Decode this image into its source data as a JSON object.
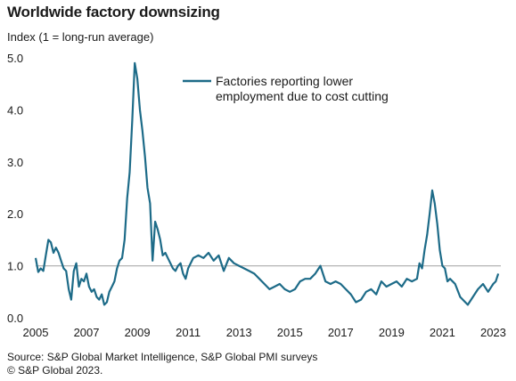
{
  "title": "Worldwide factory downsizing",
  "subtitle": "Index (1 = long-run average)",
  "footer": {
    "source": "Source: S&P Global Market Intelligence, S&P Global PMI surveys",
    "copyright": "© S&P Global 2023."
  },
  "colors": {
    "series": "#1d6b88",
    "reference_line": "#b3b3b3",
    "text": "#1a1a1a"
  },
  "chart_data": {
    "type": "line",
    "ylim": [
      0,
      5
    ],
    "xlim": [
      2005,
      2023.3
    ],
    "y_ticks": [
      "0.0",
      "1.0",
      "2.0",
      "3.0",
      "4.0",
      "5.0"
    ],
    "y_tick_values": [
      0,
      1,
      2,
      3,
      4,
      5
    ],
    "x_ticks": [
      "2005",
      "2007",
      "2009",
      "2011",
      "2013",
      "2015",
      "2017",
      "2019",
      "2021",
      "2023"
    ],
    "x_tick_values": [
      2005,
      2007,
      2009,
      2011,
      2013,
      2015,
      2017,
      2019,
      2021,
      2023
    ],
    "reference_line": 1.0,
    "legend_position": "top-right",
    "series": [
      {
        "name": "Factories reporting lower employment due to cost cutting",
        "x": [
          2005.0,
          2005.1,
          2005.2,
          2005.3,
          2005.4,
          2005.5,
          2005.6,
          2005.7,
          2005.8,
          2005.9,
          2006.0,
          2006.1,
          2006.2,
          2006.3,
          2006.4,
          2006.5,
          2006.6,
          2006.7,
          2006.8,
          2006.9,
          2007.0,
          2007.1,
          2007.2,
          2007.3,
          2007.4,
          2007.5,
          2007.6,
          2007.7,
          2007.8,
          2007.9,
          2008.0,
          2008.1,
          2008.2,
          2008.3,
          2008.4,
          2008.5,
          2008.6,
          2008.7,
          2008.8,
          2008.9,
          2009.0,
          2009.1,
          2009.2,
          2009.3,
          2009.4,
          2009.5,
          2009.6,
          2009.7,
          2009.8,
          2009.9,
          2010.0,
          2010.1,
          2010.2,
          2010.3,
          2010.4,
          2010.5,
          2010.6,
          2010.7,
          2010.8,
          2010.9,
          2011.0,
          2011.2,
          2011.4,
          2011.6,
          2011.8,
          2012.0,
          2012.2,
          2012.4,
          2012.6,
          2012.8,
          2013.0,
          2013.2,
          2013.4,
          2013.6,
          2013.8,
          2014.0,
          2014.2,
          2014.4,
          2014.6,
          2014.8,
          2015.0,
          2015.2,
          2015.4,
          2015.6,
          2015.8,
          2016.0,
          2016.2,
          2016.4,
          2016.6,
          2016.8,
          2017.0,
          2017.2,
          2017.4,
          2017.6,
          2017.8,
          2018.0,
          2018.2,
          2018.4,
          2018.6,
          2018.8,
          2019.0,
          2019.2,
          2019.4,
          2019.6,
          2019.8,
          2020.0,
          2020.1,
          2020.2,
          2020.3,
          2020.4,
          2020.5,
          2020.6,
          2020.7,
          2020.8,
          2020.9,
          2021.0,
          2021.1,
          2021.2,
          2021.3,
          2021.5,
          2021.7,
          2021.9,
          2022.0,
          2022.2,
          2022.4,
          2022.6,
          2022.8,
          2023.0,
          2023.1,
          2023.2
        ],
        "values": [
          1.15,
          0.88,
          0.95,
          0.9,
          1.2,
          1.5,
          1.45,
          1.25,
          1.35,
          1.25,
          1.1,
          0.95,
          0.9,
          0.55,
          0.35,
          0.9,
          1.05,
          0.6,
          0.75,
          0.7,
          0.85,
          0.6,
          0.5,
          0.55,
          0.4,
          0.35,
          0.45,
          0.25,
          0.3,
          0.5,
          0.6,
          0.7,
          0.95,
          1.1,
          1.15,
          1.5,
          2.3,
          2.8,
          3.8,
          4.9,
          4.6,
          4.0,
          3.6,
          3.1,
          2.5,
          2.2,
          1.1,
          1.85,
          1.7,
          1.5,
          1.2,
          1.25,
          1.15,
          1.05,
          0.95,
          0.9,
          1.0,
          1.05,
          0.85,
          0.75,
          0.95,
          1.15,
          1.2,
          1.15,
          1.25,
          1.1,
          1.2,
          0.9,
          1.15,
          1.05,
          1.0,
          0.95,
          0.9,
          0.85,
          0.75,
          0.65,
          0.55,
          0.6,
          0.65,
          0.55,
          0.5,
          0.55,
          0.7,
          0.75,
          0.75,
          0.85,
          1.0,
          0.7,
          0.65,
          0.7,
          0.65,
          0.55,
          0.45,
          0.3,
          0.35,
          0.5,
          0.55,
          0.45,
          0.7,
          0.6,
          0.65,
          0.7,
          0.6,
          0.75,
          0.7,
          0.75,
          1.05,
          0.95,
          1.3,
          1.6,
          2.0,
          2.45,
          2.2,
          1.8,
          1.3,
          1.0,
          0.95,
          0.7,
          0.75,
          0.65,
          0.4,
          0.3,
          0.25,
          0.4,
          0.55,
          0.65,
          0.5,
          0.65,
          0.7,
          0.85
        ]
      }
    ]
  }
}
